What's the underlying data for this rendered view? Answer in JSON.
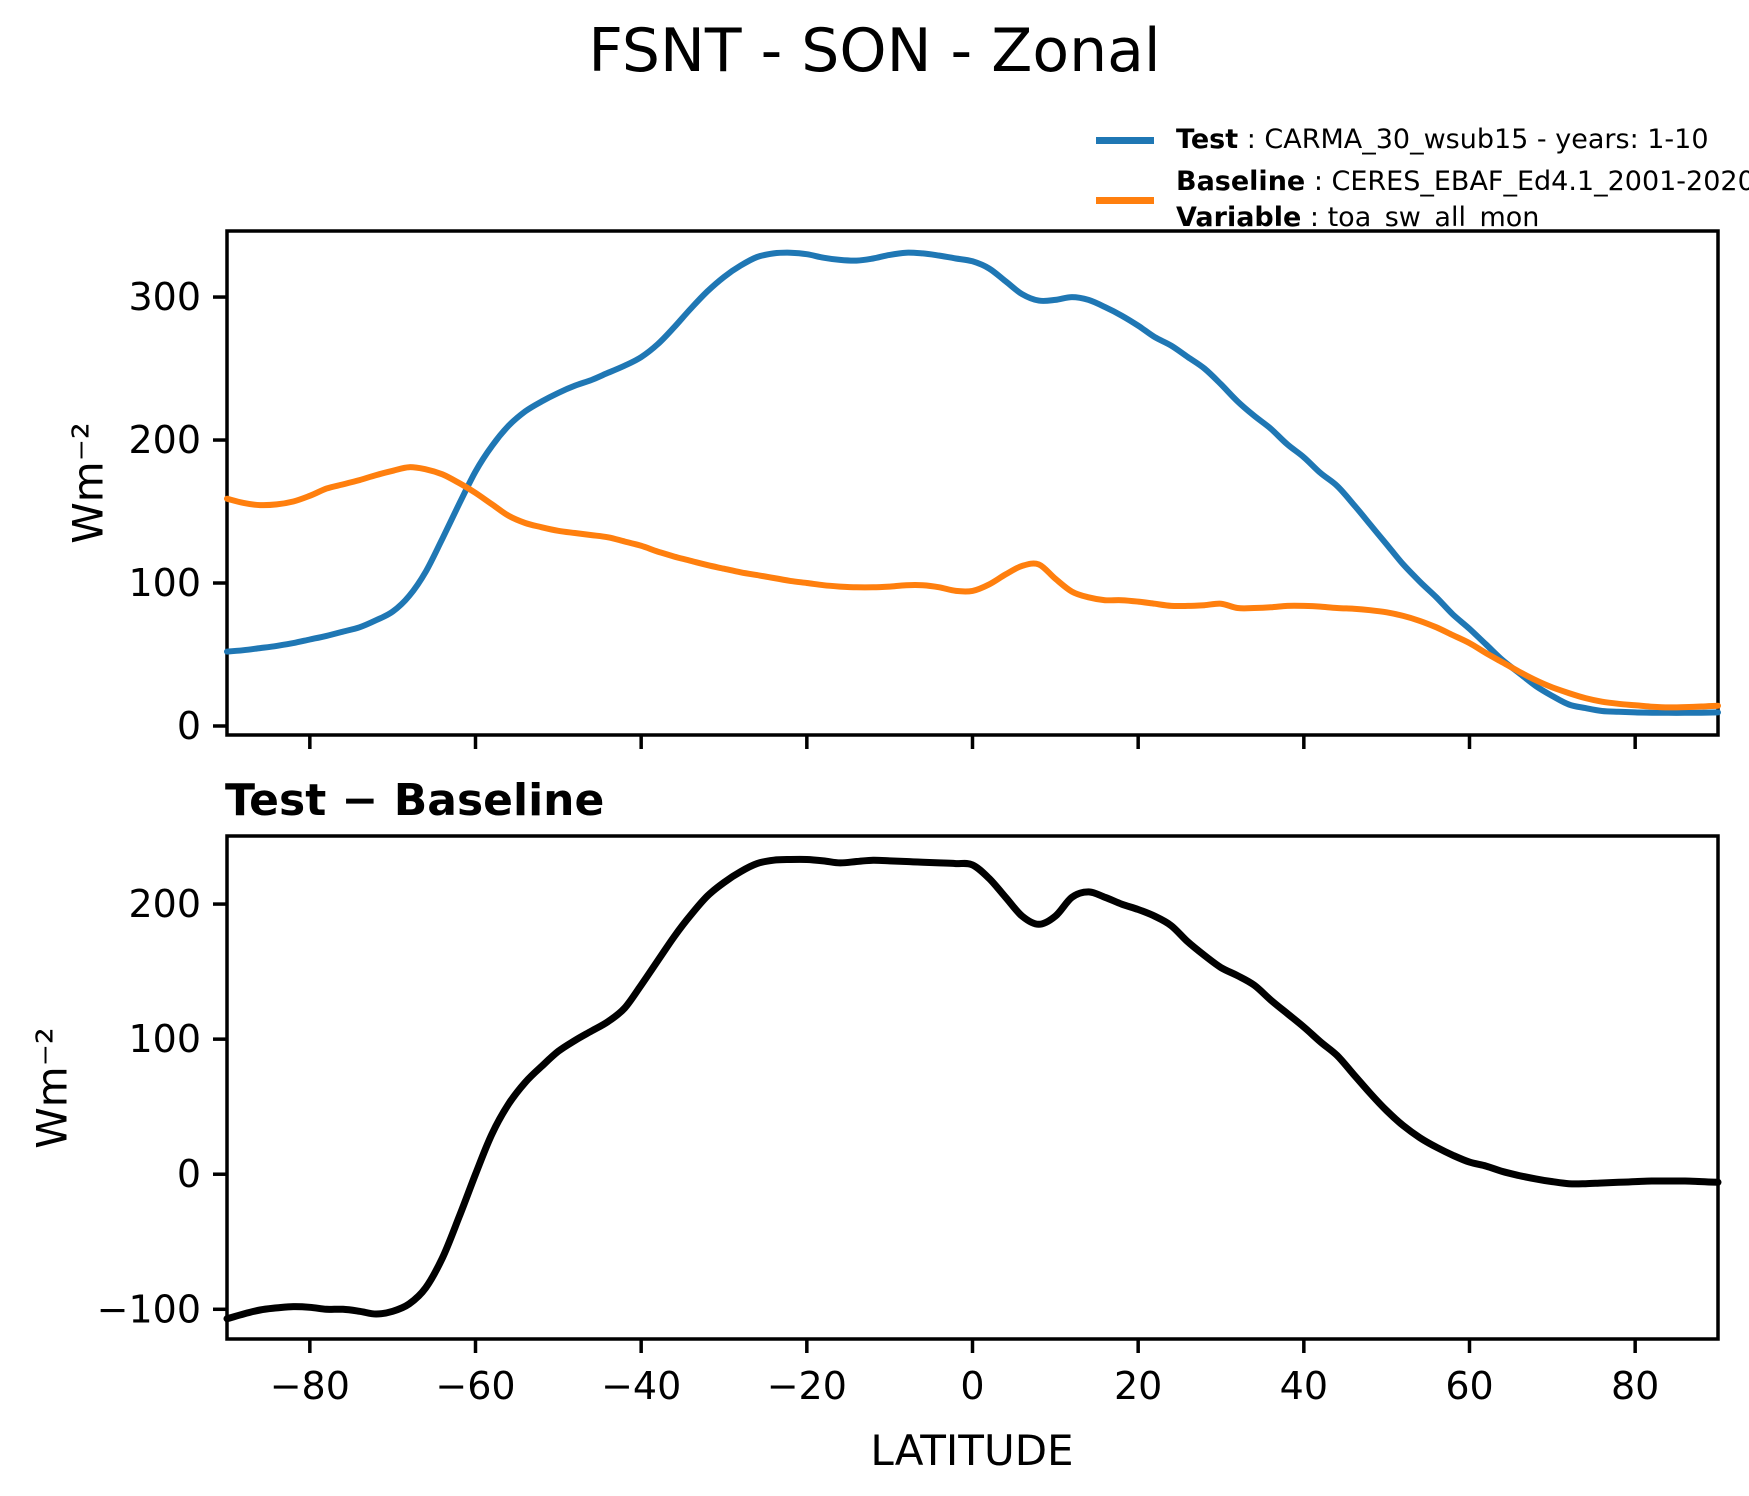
{
  "title": "FSNT - SON - Zonal",
  "legend": {
    "entries": [
      {
        "key": "Test",
        "sep": " : ",
        "value": "CARMA_30_wsub15 - years: 1-10",
        "color": "#1f77b4"
      },
      {
        "key": "Baseline",
        "sep": " : ",
        "value": "CERES_EBAF_Ed4.1_2001-2020",
        "key2": "Variable",
        "sep2": " : ",
        "value2": "toa_sw_all_mon",
        "color": "#ff7f0e"
      }
    ]
  },
  "chart_data": [
    {
      "type": "line",
      "panel": "top",
      "title": "",
      "ylabel": "Wm⁻²",
      "xlabel": "",
      "xlim": [
        -90,
        90
      ],
      "ylim": [
        -6.3,
        346.2
      ],
      "x_ticks": [
        -80,
        -60,
        -40,
        -20,
        0,
        20,
        40,
        60,
        80
      ],
      "x_tick_labels": [],
      "y_ticks": [
        0,
        100,
        200,
        300
      ],
      "y_tick_labels": [
        "0",
        "100",
        "200",
        "300"
      ],
      "grid": false,
      "legend_position": "upper right outside",
      "x": [
        -90,
        -88,
        -86,
        -84,
        -82,
        -80,
        -78,
        -76,
        -74,
        -72,
        -70,
        -68,
        -66,
        -64,
        -62,
        -60,
        -58,
        -56,
        -54,
        -52,
        -50,
        -48,
        -46,
        -44,
        -42,
        -40,
        -38,
        -36,
        -34,
        -32,
        -30,
        -28,
        -26,
        -24,
        -22,
        -20,
        -18,
        -16,
        -14,
        -12,
        -10,
        -8,
        -6,
        -4,
        -2,
        0,
        2,
        4,
        6,
        8,
        10,
        12,
        14,
        16,
        18,
        20,
        22,
        24,
        26,
        28,
        30,
        32,
        34,
        36,
        38,
        40,
        42,
        44,
        46,
        48,
        50,
        52,
        54,
        56,
        58,
        60,
        62,
        64,
        66,
        68,
        70,
        72,
        74,
        76,
        78,
        80,
        82,
        84,
        86,
        88,
        90
      ],
      "series": [
        {
          "name": "Test",
          "color": "#1f77b4",
          "values": [
            52,
            53,
            54.5,
            56,
            58,
            60.5,
            63,
            66,
            69,
            74,
            80,
            91,
            108,
            131,
            155,
            178,
            196,
            210,
            220,
            227,
            233,
            238,
            242,
            247,
            252,
            258,
            267,
            279,
            292,
            304,
            314,
            322,
            328,
            330.5,
            331,
            330,
            327.5,
            326,
            325.5,
            327,
            329.5,
            331,
            330.5,
            329,
            327,
            325,
            320,
            311,
            302,
            297.5,
            298,
            300,
            298,
            293,
            287,
            280,
            272,
            266,
            258,
            250,
            239,
            227,
            217,
            208,
            197,
            188,
            177,
            168,
            155,
            141,
            127,
            113,
            101,
            90,
            78,
            68,
            57,
            46,
            37,
            28,
            21,
            15,
            12.5,
            10.5,
            10,
            9.5,
            9.3,
            9.2,
            9.2,
            9.3,
            9.5
          ]
        },
        {
          "name": "Baseline",
          "color": "#ff7f0e",
          "values": [
            159,
            156,
            154.5,
            155,
            157,
            161,
            166,
            169,
            172,
            175.5,
            178.5,
            181,
            179.5,
            176,
            170,
            163,
            155,
            147,
            142,
            139,
            136.5,
            135,
            133.5,
            132,
            129,
            126,
            122,
            118.5,
            115.5,
            112.5,
            110,
            107.5,
            105.5,
            103.5,
            101.5,
            100,
            98.5,
            97.5,
            97,
            97,
            97.5,
            98.5,
            98.5,
            97,
            94.5,
            94.5,
            99,
            106,
            112,
            113,
            103,
            94,
            90,
            88,
            88,
            87,
            85.5,
            84,
            84,
            84.5,
            85.5,
            82.5,
            82.5,
            83,
            84,
            84,
            83.5,
            82.5,
            82,
            81,
            79.5,
            77,
            73.5,
            69,
            63.5,
            58,
            51,
            44.5,
            38,
            32,
            27,
            23,
            19.5,
            17,
            15.5,
            14.5,
            13.5,
            13,
            13.2,
            13.6,
            14.2
          ]
        }
      ]
    },
    {
      "type": "line",
      "panel": "bottom",
      "title": "Test − Baseline",
      "ylabel": "Wm⁻²",
      "xlabel": "LATITUDE",
      "xlim": [
        -90,
        90
      ],
      "ylim": [
        -122,
        250.4
      ],
      "x_ticks": [
        -80,
        -60,
        -40,
        -20,
        0,
        20,
        40,
        60,
        80
      ],
      "x_tick_labels": [
        "−80",
        "−60",
        "−40",
        "−20",
        "0",
        "20",
        "40",
        "60",
        "80"
      ],
      "y_ticks": [
        -100,
        0,
        100,
        200
      ],
      "y_tick_labels": [
        "−100",
        "0",
        "100",
        "200"
      ],
      "grid": false,
      "x": [
        -90,
        -88,
        -86,
        -84,
        -82,
        -80,
        -78,
        -76,
        -74,
        -72,
        -70,
        -68,
        -66,
        -64,
        -62,
        -60,
        -58,
        -56,
        -54,
        -52,
        -50,
        -48,
        -46,
        -44,
        -42,
        -40,
        -38,
        -36,
        -34,
        -32,
        -30,
        -28,
        -26,
        -24,
        -22,
        -20,
        -18,
        -16,
        -14,
        -12,
        -10,
        -8,
        -6,
        -4,
        -2,
        0,
        2,
        4,
        6,
        8,
        10,
        12,
        14,
        16,
        18,
        20,
        22,
        24,
        26,
        28,
        30,
        32,
        34,
        36,
        38,
        40,
        42,
        44,
        46,
        48,
        50,
        52,
        54,
        56,
        58,
        60,
        62,
        64,
        66,
        68,
        70,
        72,
        74,
        76,
        78,
        80,
        82,
        84,
        86,
        88,
        90
      ],
      "series": [
        {
          "name": "Test − Baseline",
          "color": "#000000",
          "values": [
            -107,
            -103.5,
            -100.5,
            -99,
            -98,
            -98.5,
            -100,
            -100,
            -101.5,
            -103.5,
            -101.5,
            -96,
            -84,
            -62,
            -32,
            0,
            30,
            52,
            68,
            80,
            91,
            99,
            106,
            113,
            123,
            140,
            158,
            176,
            192,
            206,
            216,
            224,
            230,
            232.5,
            233,
            233,
            232,
            230.5,
            231.5,
            232.5,
            232,
            231.5,
            231,
            230.5,
            230,
            229,
            219,
            205,
            191,
            185,
            191,
            205,
            209,
            205,
            200,
            196,
            191,
            184,
            172,
            162,
            153,
            147,
            140,
            129,
            119,
            109,
            98,
            88,
            74,
            60,
            47,
            36,
            27,
            20,
            14,
            9,
            6,
            2,
            -1,
            -3.5,
            -5.5,
            -7,
            -7,
            -6.5,
            -6,
            -5.5,
            -5,
            -5,
            -5,
            -5.5,
            -6
          ]
        }
      ]
    }
  ]
}
